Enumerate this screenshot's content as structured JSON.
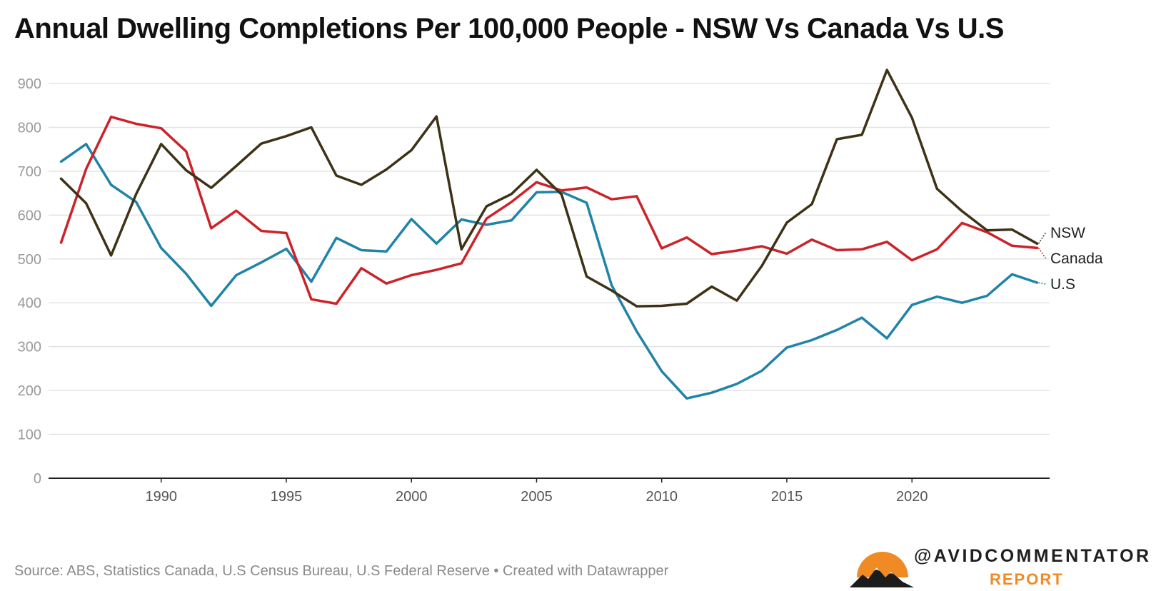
{
  "title": "Annual Dwelling Completions Per 100,000 People - NSW Vs Canada Vs U.S",
  "source": "Source: ABS, Statistics Canada, U.S Census Bureau, U.S Federal Reserve • Created with Datawrapper",
  "brand": {
    "name": "@AVIDCOMMENTATOR",
    "sub": "REPORT",
    "accent": "#f08a24"
  },
  "chart_data": {
    "type": "line",
    "xlim": [
      1985.5,
      2025.5
    ],
    "ylim": [
      0,
      900
    ],
    "yticks": [
      0,
      100,
      200,
      300,
      400,
      500,
      600,
      700,
      800,
      900
    ],
    "xticks": [
      1990,
      1995,
      2000,
      2005,
      2010,
      2015,
      2020
    ],
    "grid": true,
    "legend": "direct labels at right",
    "x": [
      1986,
      1987,
      1988,
      1989,
      1990,
      1991,
      1992,
      1993,
      1994,
      1995,
      1996,
      1997,
      1998,
      1999,
      2000,
      2001,
      2002,
      2003,
      2004,
      2005,
      2006,
      2007,
      2008,
      2009,
      2010,
      2011,
      2012,
      2013,
      2014,
      2015,
      2016,
      2017,
      2018,
      2019,
      2020,
      2021,
      2022,
      2023,
      2024,
      2025
    ],
    "series": [
      {
        "name": "NSW",
        "color": "#3d3215",
        "values": [
          683,
          627,
          508,
          648,
          762,
          702,
          662,
          712,
          763,
          780,
          800,
          690,
          669,
          704,
          748,
          825,
          522,
          620,
          648,
          703,
          647,
          460,
          428,
          392,
          393,
          398,
          437,
          405,
          484,
          583,
          625,
          773,
          783,
          931,
          822,
          660,
          609,
          565,
          567,
          535
        ]
      },
      {
        "name": "Canada",
        "color": "#cc2229",
        "values": [
          537,
          705,
          824,
          808,
          798,
          745,
          570,
          610,
          564,
          559,
          408,
          398,
          479,
          444,
          463,
          475,
          490,
          592,
          630,
          675,
          656,
          663,
          636,
          643,
          524,
          549,
          511,
          519,
          529,
          512,
          544,
          520,
          522,
          539,
          497,
          522,
          582,
          561,
          530,
          525
        ]
      },
      {
        "name": "U.S",
        "color": "#2083a8",
        "values": [
          722,
          762,
          669,
          630,
          525,
          466,
          393,
          463,
          492,
          523,
          448,
          548,
          520,
          517,
          591,
          535,
          590,
          578,
          588,
          652,
          653,
          628,
          440,
          335,
          244,
          182,
          195,
          215,
          245,
          298,
          315,
          338,
          366,
          319,
          395,
          414,
          400,
          416,
          465,
          446
        ]
      }
    ]
  }
}
